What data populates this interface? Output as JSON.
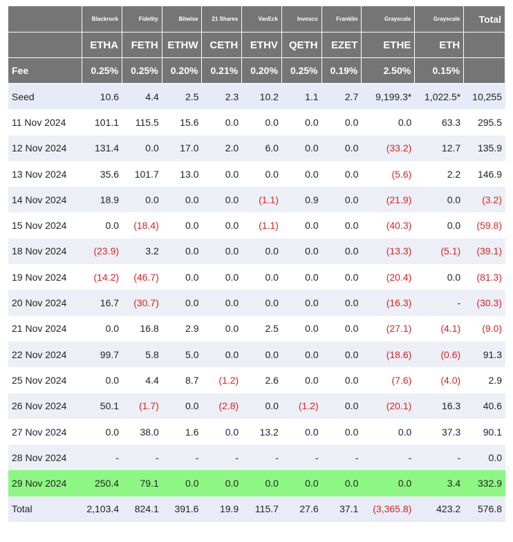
{
  "table": {
    "issuers": [
      "Blackrock",
      "Fidelity",
      "Bitwise",
      "21 Shares",
      "VanEck",
      "Invesco",
      "Franklin",
      "Grayscale",
      "Grayscale"
    ],
    "total_header": "Total",
    "tickers": [
      "ETHA",
      "FETH",
      "ETHW",
      "CETH",
      "ETHV",
      "QETH",
      "EZET",
      "ETHE",
      "ETH"
    ],
    "fee_label": "Fee",
    "fees": [
      "0.25%",
      "0.25%",
      "0.20%",
      "0.21%",
      "0.20%",
      "0.25%",
      "0.19%",
      "2.50%",
      "0.15%"
    ],
    "rows": [
      {
        "label": "Seed",
        "cells": [
          "10.6",
          "4.4",
          "2.5",
          "2.3",
          "10.2",
          "1.1",
          "2.7",
          "9,199.3*",
          "1,022.5*",
          "10,255"
        ]
      },
      {
        "label": "11 Nov 2024",
        "cells": [
          "101.1",
          "115.5",
          "15.6",
          "0.0",
          "0.0",
          "0.0",
          "0.0",
          "0.0",
          "63.3",
          "295.5"
        ]
      },
      {
        "label": "12 Nov 2024",
        "cells": [
          "131.4",
          "0.0",
          "17.0",
          "2.0",
          "6.0",
          "0.0",
          "0.0",
          "(33.2)",
          "12.7",
          "135.9"
        ]
      },
      {
        "label": "13 Nov 2024",
        "cells": [
          "35.6",
          "101.7",
          "13.0",
          "0.0",
          "0.0",
          "0.0",
          "0.0",
          "(5.6)",
          "2.2",
          "146.9"
        ]
      },
      {
        "label": "14 Nov 2024",
        "cells": [
          "18.9",
          "0.0",
          "0.0",
          "0.0",
          "(1.1)",
          "0.9",
          "0.0",
          "(21.9)",
          "0.0",
          "(3.2)"
        ]
      },
      {
        "label": "15 Nov 2024",
        "cells": [
          "0.0",
          "(18.4)",
          "0.0",
          "0.0",
          "(1.1)",
          "0.0",
          "0.0",
          "(40.3)",
          "0.0",
          "(59.8)"
        ]
      },
      {
        "label": "18 Nov 2024",
        "cells": [
          "(23.9)",
          "3.2",
          "0.0",
          "0.0",
          "0.0",
          "0.0",
          "0.0",
          "(13.3)",
          "(5.1)",
          "(39.1)"
        ]
      },
      {
        "label": "19 Nov 2024",
        "cells": [
          "(14.2)",
          "(46.7)",
          "0.0",
          "0.0",
          "0.0",
          "0.0",
          "0.0",
          "(20.4)",
          "0.0",
          "(81.3)"
        ]
      },
      {
        "label": "20 Nov 2024",
        "cells": [
          "16.7",
          "(30.7)",
          "0.0",
          "0.0",
          "0.0",
          "0.0",
          "0.0",
          "(16.3)",
          "-",
          "(30.3)"
        ]
      },
      {
        "label": "21 Nov 2024",
        "cells": [
          "0.0",
          "16.8",
          "2.9",
          "0.0",
          "2.5",
          "0.0",
          "0.0",
          "(27.1)",
          "(4.1)",
          "(9.0)"
        ]
      },
      {
        "label": "22 Nov 2024",
        "cells": [
          "99.7",
          "5.8",
          "5.0",
          "0.0",
          "0.0",
          "0.0",
          "0.0",
          "(18.6)",
          "(0.6)",
          "91.3"
        ]
      },
      {
        "label": "25 Nov 2024",
        "cells": [
          "0.0",
          "4.4",
          "8.7",
          "(1.2)",
          "2.6",
          "0.0",
          "0.0",
          "(7.6)",
          "(4.0)",
          "2.9"
        ]
      },
      {
        "label": "26 Nov 2024",
        "cells": [
          "50.1",
          "(1.7)",
          "0.0",
          "(2.8)",
          "0.0",
          "(1.2)",
          "0.0",
          "(20.1)",
          "16.3",
          "40.6"
        ]
      },
      {
        "label": "27 Nov 2024",
        "cells": [
          "0.0",
          "38.0",
          "1.6",
          "0.0",
          "13.2",
          "0.0",
          "0.0",
          "0.0",
          "37.3",
          "90.1"
        ]
      },
      {
        "label": "28 Nov 2024",
        "cells": [
          "-",
          "-",
          "-",
          "-",
          "-",
          "-",
          "-",
          "-",
          "-",
          "0.0"
        ]
      },
      {
        "label": "29 Nov 2024",
        "cells": [
          "250.4",
          "79.1",
          "0.0",
          "0.0",
          "0.0",
          "0.0",
          "0.0",
          "0.0",
          "3.4",
          "332.9"
        ]
      },
      {
        "label": "Total",
        "cells": [
          "2,103.4",
          "824.1",
          "391.6",
          "19.9",
          "115.7",
          "27.6",
          "37.1",
          "(3,365.8)",
          "423.2",
          "576.8"
        ]
      }
    ]
  },
  "colors": {
    "header_bg": "#757575",
    "highlight_row": "#8ef784",
    "negative_text": "#e02020"
  }
}
